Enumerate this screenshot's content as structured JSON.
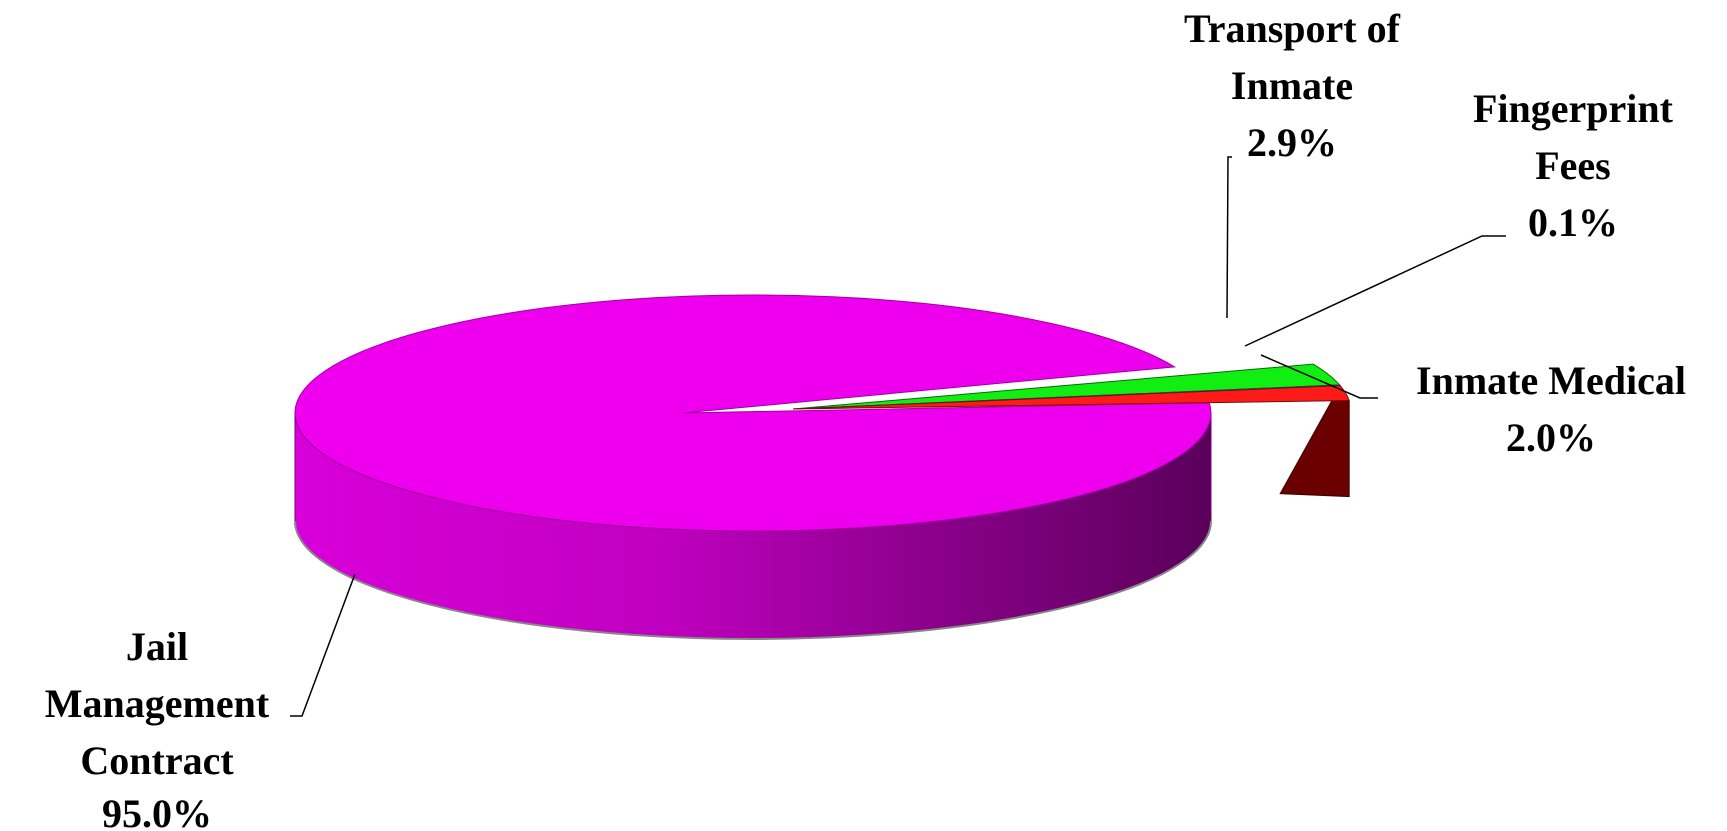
{
  "chart_data": {
    "type": "pie",
    "title": "",
    "slices": [
      {
        "label_lines": [
          "Jail",
          "Management",
          "Contract"
        ],
        "value_text": "95.0%",
        "value": 95.0,
        "color": "#ee00ee"
      },
      {
        "label_lines": [
          "Transport of",
          "Inmate"
        ],
        "value_text": "2.9%",
        "value": 2.9,
        "color": "#11ee11"
      },
      {
        "label_lines": [
          "Fingerprint",
          "Fees"
        ],
        "value_text": "0.1%",
        "value": 0.1,
        "color": "#22bbbb"
      },
      {
        "label_lines": [
          "Inmate Medical"
        ],
        "value_text": "2.0%",
        "value": 2.0,
        "color": "#ff1a1a"
      }
    ],
    "legend": "none",
    "style": "3d-exploded"
  }
}
